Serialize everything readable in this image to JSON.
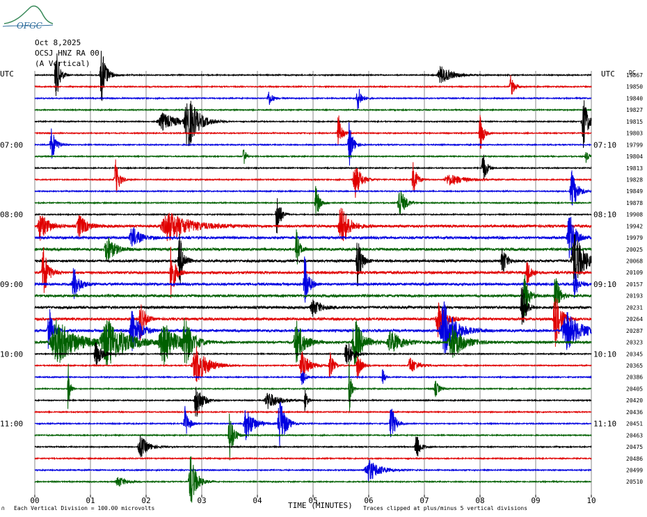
{
  "logo": {
    "text": "OFGC",
    "color": "#2a6a9a",
    "hill_color": "#3a8a5a"
  },
  "header": {
    "date": "Oct 8,2025",
    "station": "OCSJ HNZ RA 00",
    "component": "(A Vertical)"
  },
  "left_axis_title": "UTC",
  "right_axis_title": "UTC",
  "right_column_header": "DC",
  "x_axis_title": "TIME (MINUTES)",
  "footer_left": "Each Vertical Division = 100.00 microvolts",
  "footer_right": "Traces clipped at plus/minus 5 vertical divisions",
  "footer_mark": "∩",
  "colors": {
    "trace_cycle": [
      "#000000",
      "#e00000",
      "#0000e0",
      "#006000"
    ],
    "grid": "#888888"
  },
  "chart_data": {
    "type": "line",
    "x_ticks": [
      "00",
      "01",
      "02",
      "03",
      "04",
      "05",
      "06",
      "07",
      "08",
      "09",
      "10"
    ],
    "xlim": [
      0,
      10
    ],
    "left_time_labels": [
      {
        "row": 6,
        "text": "07:00"
      },
      {
        "row": 12,
        "text": "08:00"
      },
      {
        "row": 18,
        "text": "09:00"
      },
      {
        "row": 24,
        "text": "10:00"
      },
      {
        "row": 30,
        "text": "11:00"
      }
    ],
    "right_time_labels": [
      {
        "row": 6,
        "text": "07:10"
      },
      {
        "row": 12,
        "text": "08:10"
      },
      {
        "row": 18,
        "text": "09:10"
      },
      {
        "row": 24,
        "text": "10:10"
      },
      {
        "row": 30,
        "text": "11:10"
      }
    ],
    "dc_offsets": [
      "19867",
      "19850",
      "19840",
      "19827",
      "19815",
      "19803",
      "19799",
      "19804",
      "19813",
      "19828",
      "19849",
      "19878",
      "19908",
      "19942",
      "19979",
      "20025",
      "20068",
      "20109",
      "20157",
      "20193",
      "20231",
      "20264",
      "20287",
      "20323",
      "20345",
      "20365",
      "20386",
      "20405",
      "20420",
      "20436",
      "20451",
      "20463",
      "20475",
      "20486",
      "20499",
      "20510"
    ],
    "events": [
      {
        "row": 0,
        "t": 0.38,
        "a": 1.0,
        "w": 0.1
      },
      {
        "row": 0,
        "t": 1.2,
        "a": 1.0,
        "w": 0.12
      },
      {
        "row": 0,
        "t": 7.3,
        "a": 0.3,
        "w": 0.3
      },
      {
        "row": 1,
        "t": 8.55,
        "a": 0.4,
        "w": 0.1
      },
      {
        "row": 2,
        "t": 4.2,
        "a": 0.3,
        "w": 0.1
      },
      {
        "row": 2,
        "t": 5.8,
        "a": 0.5,
        "w": 0.1
      },
      {
        "row": 4,
        "t": 2.75,
        "a": 1.0,
        "w": 0.25
      },
      {
        "row": 4,
        "t": 2.3,
        "a": 0.3,
        "w": 0.4
      },
      {
        "row": 4,
        "t": 9.85,
        "a": 1.0,
        "w": 0.12
      },
      {
        "row": 5,
        "t": 5.45,
        "a": 0.8,
        "w": 0.08
      },
      {
        "row": 5,
        "t": 8.0,
        "a": 0.8,
        "w": 0.08
      },
      {
        "row": 6,
        "t": 0.3,
        "a": 0.6,
        "w": 0.12
      },
      {
        "row": 6,
        "t": 5.65,
        "a": 0.8,
        "w": 0.1
      },
      {
        "row": 7,
        "t": 3.75,
        "a": 0.5,
        "w": 0.05
      },
      {
        "row": 7,
        "t": 9.9,
        "a": 0.4,
        "w": 0.06
      },
      {
        "row": 8,
        "t": 8.05,
        "a": 0.6,
        "w": 0.1
      },
      {
        "row": 9,
        "t": 1.45,
        "a": 0.7,
        "w": 0.1
      },
      {
        "row": 9,
        "t": 5.75,
        "a": 0.7,
        "w": 0.15
      },
      {
        "row": 9,
        "t": 6.8,
        "a": 0.6,
        "w": 0.1
      },
      {
        "row": 9,
        "t": 7.45,
        "a": 0.2,
        "w": 0.4
      },
      {
        "row": 10,
        "t": 9.65,
        "a": 0.7,
        "w": 0.15
      },
      {
        "row": 11,
        "t": 5.05,
        "a": 0.6,
        "w": 0.1
      },
      {
        "row": 11,
        "t": 6.55,
        "a": 0.6,
        "w": 0.15
      },
      {
        "row": 12,
        "t": 4.35,
        "a": 0.8,
        "w": 0.1
      },
      {
        "row": 13,
        "t": 0.1,
        "a": 0.5,
        "w": 0.2
      },
      {
        "row": 13,
        "t": 2.4,
        "a": 0.5,
        "w": 0.6
      },
      {
        "row": 13,
        "t": 5.5,
        "a": 0.8,
        "w": 0.2
      },
      {
        "row": 13,
        "t": 0.8,
        "a": 0.4,
        "w": 0.2
      },
      {
        "row": 14,
        "t": 1.75,
        "a": 0.4,
        "w": 0.2
      },
      {
        "row": 14,
        "t": 9.6,
        "a": 1.0,
        "w": 0.15
      },
      {
        "row": 15,
        "t": 1.3,
        "a": 0.5,
        "w": 0.2
      },
      {
        "row": 15,
        "t": 4.7,
        "a": 0.7,
        "w": 0.08
      },
      {
        "row": 16,
        "t": 2.6,
        "a": 1.0,
        "w": 0.1
      },
      {
        "row": 16,
        "t": 5.8,
        "a": 0.9,
        "w": 0.1
      },
      {
        "row": 16,
        "t": 8.4,
        "a": 0.6,
        "w": 0.1
      },
      {
        "row": 16,
        "t": 9.7,
        "a": 1.0,
        "w": 0.25
      },
      {
        "row": 17,
        "t": 0.15,
        "a": 1.0,
        "w": 0.12
      },
      {
        "row": 17,
        "t": 2.45,
        "a": 1.0,
        "w": 0.1
      },
      {
        "row": 17,
        "t": 8.85,
        "a": 0.5,
        "w": 0.1
      },
      {
        "row": 18,
        "t": 0.7,
        "a": 0.6,
        "w": 0.15
      },
      {
        "row": 18,
        "t": 4.85,
        "a": 1.0,
        "w": 0.1
      },
      {
        "row": 18,
        "t": 9.7,
        "a": 0.5,
        "w": 0.1
      },
      {
        "row": 19,
        "t": 8.8,
        "a": 0.9,
        "w": 0.1
      },
      {
        "row": 19,
        "t": 9.35,
        "a": 0.9,
        "w": 0.1
      },
      {
        "row": 20,
        "t": 5.0,
        "a": 0.3,
        "w": 0.2
      },
      {
        "row": 20,
        "t": 8.75,
        "a": 1.0,
        "w": 0.1
      },
      {
        "row": 21,
        "t": 1.9,
        "a": 0.8,
        "w": 0.1
      },
      {
        "row": 21,
        "t": 7.25,
        "a": 0.6,
        "w": 0.2
      },
      {
        "row": 21,
        "t": 9.35,
        "a": 1.0,
        "w": 0.15
      },
      {
        "row": 22,
        "t": 0.25,
        "a": 1.0,
        "w": 0.1
      },
      {
        "row": 22,
        "t": 1.75,
        "a": 0.8,
        "w": 0.2
      },
      {
        "row": 22,
        "t": 7.35,
        "a": 1.0,
        "w": 0.3
      },
      {
        "row": 22,
        "t": 9.55,
        "a": 0.7,
        "w": 0.35
      },
      {
        "row": 23,
        "t": 0.4,
        "a": 0.8,
        "w": 0.5
      },
      {
        "row": 23,
        "t": 1.3,
        "a": 0.8,
        "w": 0.5
      },
      {
        "row": 23,
        "t": 2.3,
        "a": 0.8,
        "w": 0.3
      },
      {
        "row": 23,
        "t": 2.7,
        "a": 0.8,
        "w": 0.2
      },
      {
        "row": 23,
        "t": 4.7,
        "a": 0.8,
        "w": 0.2
      },
      {
        "row": 23,
        "t": 5.75,
        "a": 0.9,
        "w": 0.2
      },
      {
        "row": 23,
        "t": 6.4,
        "a": 0.4,
        "w": 0.3
      },
      {
        "row": 23,
        "t": 7.5,
        "a": 0.6,
        "w": 0.3
      },
      {
        "row": 24,
        "t": 1.1,
        "a": 0.5,
        "w": 0.15
      },
      {
        "row": 24,
        "t": 5.6,
        "a": 0.6,
        "w": 0.15
      },
      {
        "row": 25,
        "t": 2.9,
        "a": 0.7,
        "w": 0.3
      },
      {
        "row": 25,
        "t": 4.8,
        "a": 0.5,
        "w": 0.2
      },
      {
        "row": 25,
        "t": 5.3,
        "a": 0.5,
        "w": 0.1
      },
      {
        "row": 25,
        "t": 5.8,
        "a": 0.5,
        "w": 0.1
      },
      {
        "row": 25,
        "t": 6.75,
        "a": 0.3,
        "w": 0.2
      },
      {
        "row": 26,
        "t": 4.8,
        "a": 0.3,
        "w": 0.1
      },
      {
        "row": 26,
        "t": 6.25,
        "a": 0.4,
        "w": 0.05
      },
      {
        "row": 27,
        "t": 0.6,
        "a": 1.0,
        "w": 0.05
      },
      {
        "row": 27,
        "t": 5.65,
        "a": 1.0,
        "w": 0.05
      },
      {
        "row": 27,
        "t": 7.2,
        "a": 0.3,
        "w": 0.1
      },
      {
        "row": 28,
        "t": 2.9,
        "a": 0.7,
        "w": 0.15
      },
      {
        "row": 28,
        "t": 4.2,
        "a": 0.3,
        "w": 0.3
      },
      {
        "row": 28,
        "t": 4.85,
        "a": 0.6,
        "w": 0.05
      },
      {
        "row": 30,
        "t": 2.7,
        "a": 0.6,
        "w": 0.1
      },
      {
        "row": 30,
        "t": 3.8,
        "a": 0.6,
        "w": 0.2
      },
      {
        "row": 30,
        "t": 4.4,
        "a": 1.0,
        "w": 0.15
      },
      {
        "row": 30,
        "t": 6.4,
        "a": 0.8,
        "w": 0.1
      },
      {
        "row": 31,
        "t": 3.5,
        "a": 1.0,
        "w": 0.1
      },
      {
        "row": 32,
        "t": 1.9,
        "a": 0.4,
        "w": 0.2
      },
      {
        "row": 32,
        "t": 6.85,
        "a": 0.6,
        "w": 0.1
      },
      {
        "row": 34,
        "t": 6.0,
        "a": 0.4,
        "w": 0.3
      },
      {
        "row": 35,
        "t": 2.8,
        "a": 1.0,
        "w": 0.15
      },
      {
        "row": 35,
        "t": 1.5,
        "a": 0.2,
        "w": 0.2
      }
    ]
  }
}
